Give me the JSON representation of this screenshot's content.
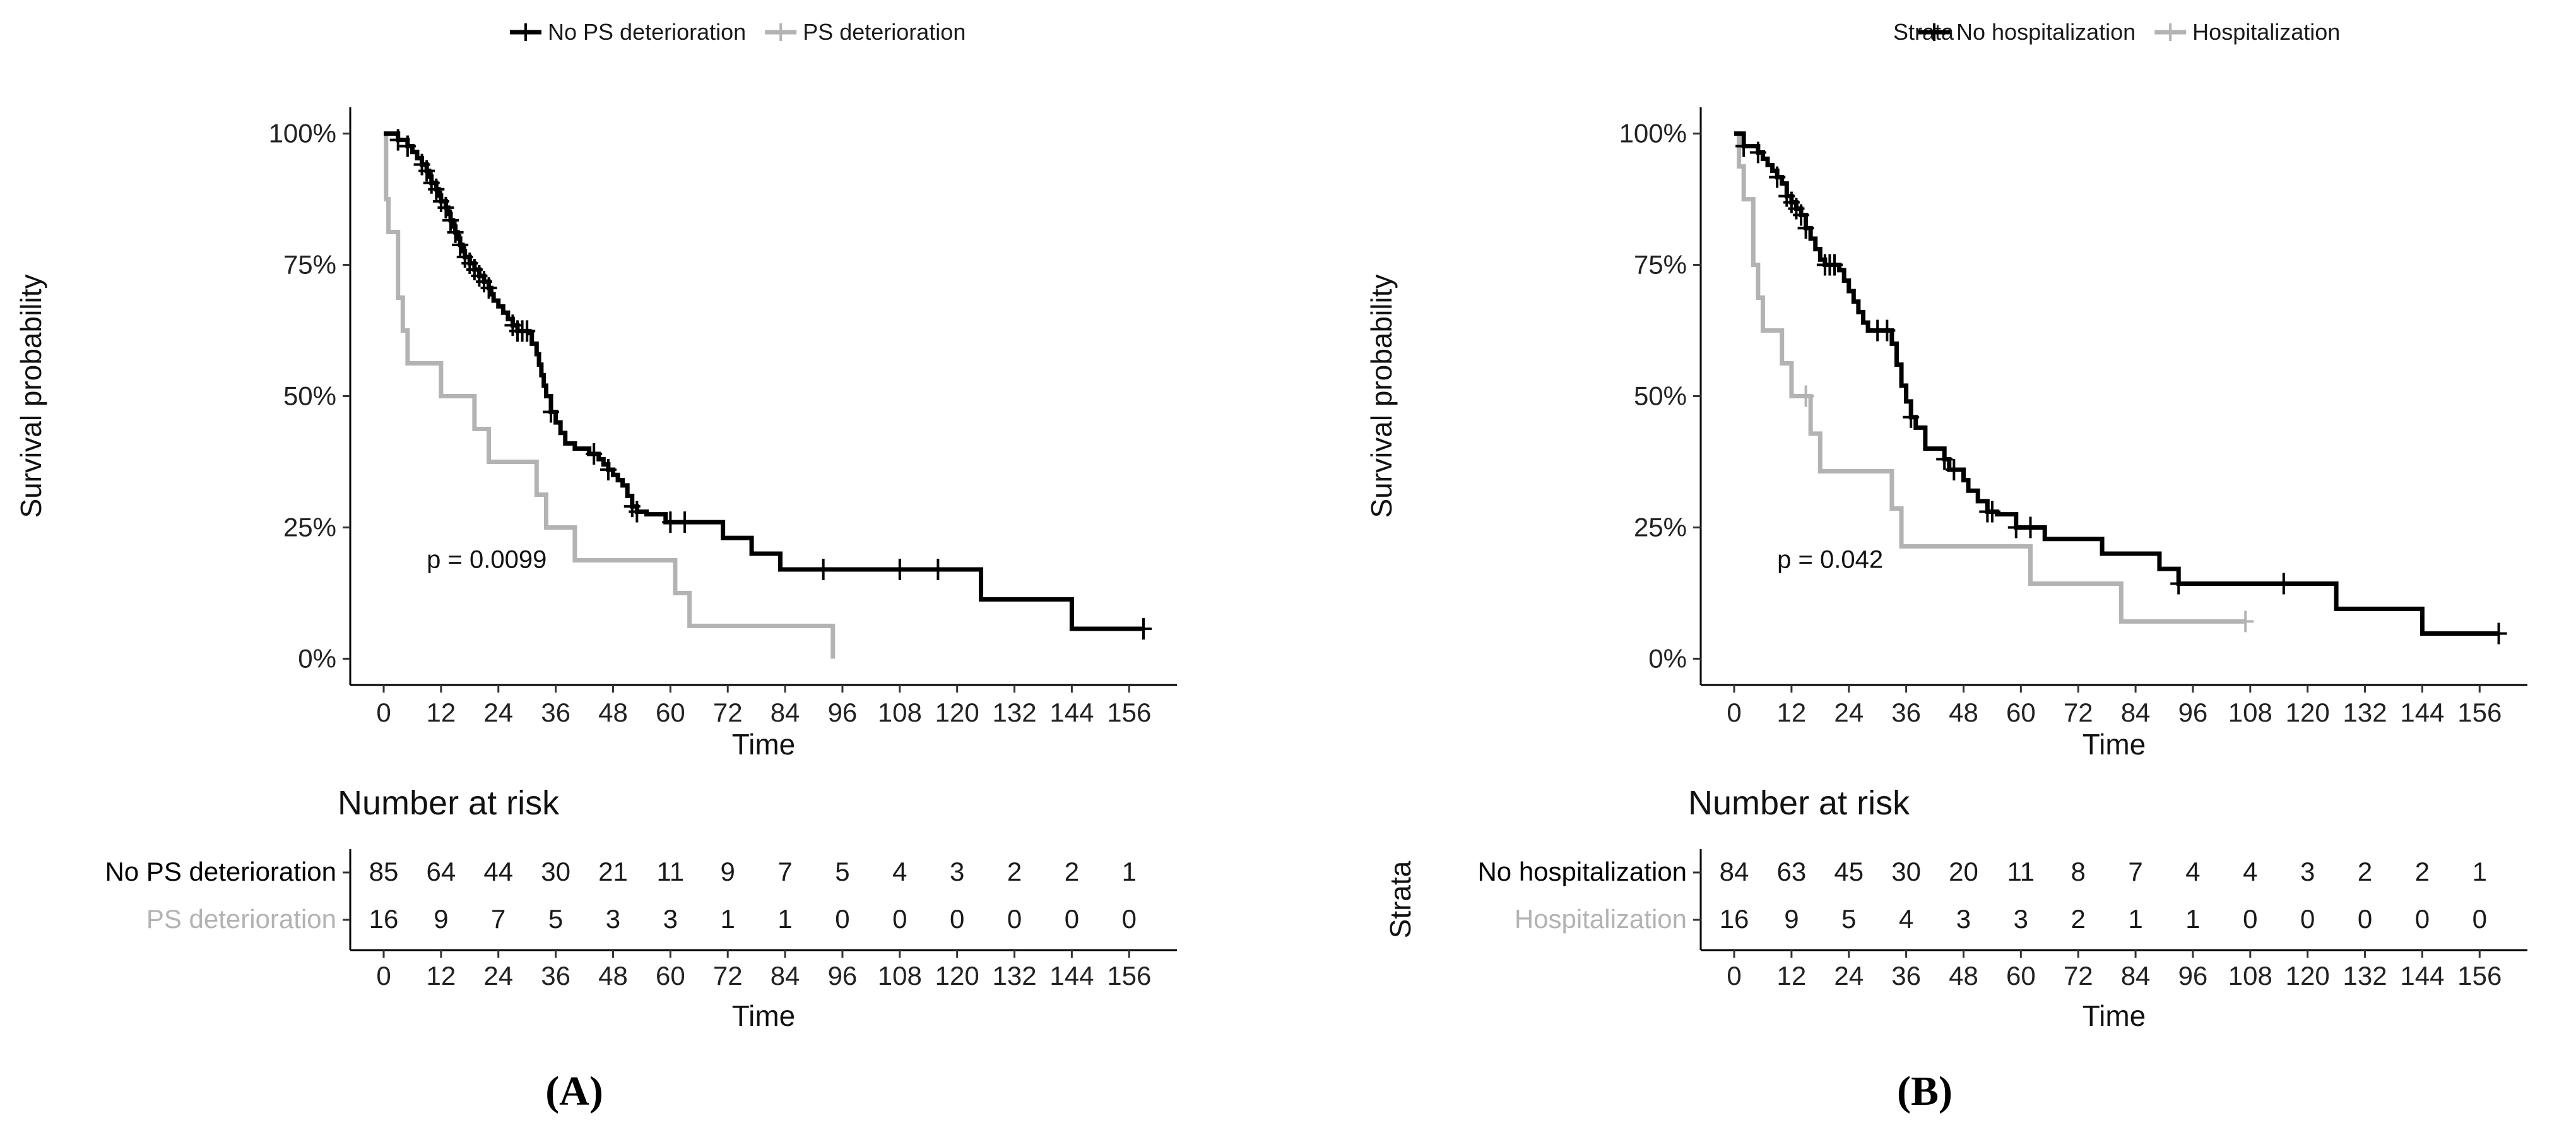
{
  "chart_data": [
    {
      "type": "line",
      "panel_label": "(A)",
      "legend": {
        "title": "",
        "placement": "top",
        "entries": [
          {
            "name": "No PS deterioration",
            "color": "#000000"
          },
          {
            "name": "PS deterioration",
            "color": "#b3b3b3"
          }
        ]
      },
      "ylabel": "Survival probability",
      "xlabel": "Time",
      "xlim": [
        -7,
        166
      ],
      "ylim": [
        -0.05,
        1.05
      ],
      "xticks": [
        0,
        12,
        24,
        36,
        48,
        60,
        72,
        84,
        96,
        108,
        120,
        132,
        144,
        156
      ],
      "yticks": [
        {
          "value": 0,
          "label": "0%"
        },
        {
          "value": 0.25,
          "label": "25%"
        },
        {
          "value": 0.5,
          "label": "50%"
        },
        {
          "value": 0.75,
          "label": "75%"
        },
        {
          "value": 1,
          "label": "100%"
        }
      ],
      "annotation": {
        "text": "p = 0.0099",
        "x": 9,
        "y": 0.19
      },
      "series": [
        {
          "name": "No PS deterioration",
          "color": "#000000",
          "steps": [
            [
              0,
              1.0
            ],
            [
              3,
              0.988
            ],
            [
              5,
              0.976
            ],
            [
              6,
              0.965
            ],
            [
              7,
              0.953
            ],
            [
              8,
              0.941
            ],
            [
              9,
              0.929
            ],
            [
              9.5,
              0.918
            ],
            [
              10,
              0.906
            ],
            [
              11,
              0.894
            ],
            [
              11.5,
              0.882
            ],
            [
              12,
              0.871
            ],
            [
              13,
              0.859
            ],
            [
              13.5,
              0.847
            ],
            [
              14,
              0.835
            ],
            [
              14.5,
              0.823
            ],
            [
              15,
              0.812
            ],
            [
              15.5,
              0.8
            ],
            [
              16,
              0.788
            ],
            [
              16.5,
              0.776
            ],
            [
              17,
              0.765
            ],
            [
              18,
              0.753
            ],
            [
              19,
              0.741
            ],
            [
              20,
              0.729
            ],
            [
              21,
              0.718
            ],
            [
              22,
              0.706
            ],
            [
              22.5,
              0.694
            ],
            [
              23,
              0.682
            ],
            [
              24,
              0.671
            ],
            [
              25,
              0.659
            ],
            [
              26,
              0.647
            ],
            [
              27,
              0.635
            ],
            [
              28,
              0.624
            ],
            [
              30.5,
              0.62
            ],
            [
              31,
              0.6
            ],
            [
              32,
              0.58
            ],
            [
              32.5,
              0.56
            ],
            [
              33,
              0.54
            ],
            [
              33.5,
              0.52
            ],
            [
              34,
              0.5
            ],
            [
              35,
              0.47
            ],
            [
              36,
              0.45
            ],
            [
              37,
              0.43
            ],
            [
              38,
              0.41
            ],
            [
              40,
              0.4
            ],
            [
              43,
              0.39
            ],
            [
              45,
              0.38
            ],
            [
              46,
              0.37
            ],
            [
              47,
              0.36
            ],
            [
              48,
              0.35
            ],
            [
              49,
              0.34
            ],
            [
              50,
              0.33
            ],
            [
              51,
              0.31
            ],
            [
              52,
              0.29
            ],
            [
              53,
              0.28
            ],
            [
              55,
              0.275
            ],
            [
              59,
              0.26
            ],
            [
              71,
              0.23
            ],
            [
              77,
              0.2
            ],
            [
              83,
              0.17
            ],
            [
              125,
              0.113
            ],
            [
              144,
              0.057
            ]
          ],
          "end_x": 159,
          "censor_x": [
            3,
            5,
            8,
            9,
            10,
            11,
            12,
            13,
            14,
            15,
            16,
            17,
            18,
            19,
            20,
            21,
            22,
            27,
            28,
            29,
            30,
            35,
            44,
            47,
            52,
            53,
            60,
            63,
            92,
            108,
            116,
            159
          ]
        },
        {
          "name": "PS deterioration",
          "color": "#b3b3b3",
          "steps": [
            [
              0,
              1.0
            ],
            [
              0.5,
              0.875
            ],
            [
              1,
              0.8125
            ],
            [
              3,
              0.6875
            ],
            [
              4,
              0.625
            ],
            [
              5,
              0.5625
            ],
            [
              12,
              0.5
            ],
            [
              19,
              0.4375
            ],
            [
              22,
              0.375
            ],
            [
              32,
              0.3125
            ],
            [
              34,
              0.25
            ],
            [
              40,
              0.1875
            ],
            [
              61,
              0.125
            ],
            [
              64,
              0.0625
            ],
            [
              94,
              0.0
            ]
          ],
          "end_x": 94,
          "censor_x": []
        }
      ],
      "risk_table": {
        "title": "Number at risk",
        "y_axis_title": "",
        "times": [
          0,
          12,
          24,
          36,
          48,
          60,
          72,
          84,
          96,
          108,
          120,
          132,
          144,
          156
        ],
        "xlabel": "Time",
        "rows": [
          {
            "name": "No PS deterioration",
            "color": "#000000",
            "values": [
              85,
              64,
              44,
              30,
              21,
              11,
              9,
              7,
              5,
              4,
              3,
              2,
              2,
              1
            ]
          },
          {
            "name": "PS deterioration",
            "color": "#b3b3b3",
            "values": [
              16,
              9,
              7,
              5,
              3,
              3,
              1,
              1,
              0,
              0,
              0,
              0,
              0,
              0
            ]
          }
        ]
      }
    },
    {
      "type": "line",
      "panel_label": "(B)",
      "legend": {
        "title": "Strata",
        "placement": "top",
        "entries": [
          {
            "name": "No hospitalization",
            "color": "#000000"
          },
          {
            "name": "Hospitalization",
            "color": "#b3b3b3"
          }
        ]
      },
      "ylabel": "Survival probability",
      "xlabel": "Time",
      "xlim": [
        -7,
        166
      ],
      "ylim": [
        -0.05,
        1.05
      ],
      "xticks": [
        0,
        12,
        24,
        36,
        48,
        60,
        72,
        84,
        96,
        108,
        120,
        132,
        144,
        156
      ],
      "yticks": [
        {
          "value": 0,
          "label": "0%"
        },
        {
          "value": 0.25,
          "label": "25%"
        },
        {
          "value": 0.5,
          "label": "50%"
        },
        {
          "value": 0.75,
          "label": "75%"
        },
        {
          "value": 1,
          "label": "100%"
        }
      ],
      "annotation": {
        "text": "p = 0.042",
        "x": 9,
        "y": 0.19
      },
      "series": [
        {
          "name": "No hospitalization",
          "color": "#000000",
          "steps": [
            [
              0,
              1.0
            ],
            [
              2,
              0.976
            ],
            [
              5,
              0.964
            ],
            [
              6,
              0.952
            ],
            [
              7,
              0.94
            ],
            [
              8,
              0.929
            ],
            [
              9,
              0.917
            ],
            [
              10,
              0.905
            ],
            [
              11,
              0.881
            ],
            [
              12,
              0.869
            ],
            [
              13,
              0.857
            ],
            [
              14,
              0.845
            ],
            [
              15,
              0.82
            ],
            [
              16,
              0.8
            ],
            [
              17,
              0.78
            ],
            [
              18,
              0.76
            ],
            [
              19,
              0.75
            ],
            [
              22,
              0.74
            ],
            [
              23,
              0.72
            ],
            [
              24,
              0.7
            ],
            [
              25,
              0.68
            ],
            [
              26,
              0.66
            ],
            [
              27,
              0.64
            ],
            [
              28,
              0.625
            ],
            [
              33,
              0.6
            ],
            [
              34,
              0.56
            ],
            [
              35,
              0.52
            ],
            [
              36,
              0.49
            ],
            [
              37,
              0.46
            ],
            [
              38,
              0.44
            ],
            [
              40,
              0.4
            ],
            [
              44,
              0.38
            ],
            [
              45,
              0.36
            ],
            [
              48,
              0.34
            ],
            [
              49,
              0.32
            ],
            [
              51,
              0.3
            ],
            [
              53,
              0.28
            ],
            [
              55,
              0.275
            ],
            [
              59,
              0.25
            ],
            [
              65,
              0.228
            ],
            [
              77,
              0.2
            ],
            [
              89,
              0.171
            ],
            [
              93,
              0.143
            ],
            [
              126,
              0.095
            ],
            [
              144,
              0.048
            ]
          ],
          "end_x": 160,
          "censor_x": [
            2,
            5,
            9,
            11,
            12,
            13,
            14,
            15,
            19,
            20,
            21,
            30,
            32,
            37,
            44,
            46,
            53,
            54,
            59,
            62,
            93,
            115,
            160
          ]
        },
        {
          "name": "Hospitalization",
          "color": "#b3b3b3",
          "steps": [
            [
              0,
              1.0
            ],
            [
              1,
              0.9375
            ],
            [
              2,
              0.875
            ],
            [
              4,
              0.75
            ],
            [
              5,
              0.6875
            ],
            [
              6,
              0.625
            ],
            [
              10,
              0.5625
            ],
            [
              12,
              0.5
            ],
            [
              16,
              0.4286
            ],
            [
              18,
              0.357
            ],
            [
              33,
              0.286
            ],
            [
              35,
              0.214
            ],
            [
              62,
              0.143
            ],
            [
              81,
              0.071
            ]
          ],
          "end_x": 107,
          "censor_x": [
            15,
            107
          ]
        }
      ],
      "risk_table": {
        "title": "Number at risk",
        "y_axis_title": "Strata",
        "times": [
          0,
          12,
          24,
          36,
          48,
          60,
          72,
          84,
          96,
          108,
          120,
          132,
          144,
          156
        ],
        "xlabel": "Time",
        "rows": [
          {
            "name": "No hospitalization",
            "color": "#000000",
            "values": [
              84,
              63,
              45,
              30,
              20,
              11,
              8,
              7,
              4,
              4,
              3,
              2,
              2,
              1
            ]
          },
          {
            "name": "Hospitalization",
            "color": "#b3b3b3",
            "values": [
              16,
              9,
              5,
              4,
              3,
              3,
              2,
              1,
              1,
              0,
              0,
              0,
              0,
              0
            ]
          }
        ]
      }
    }
  ]
}
